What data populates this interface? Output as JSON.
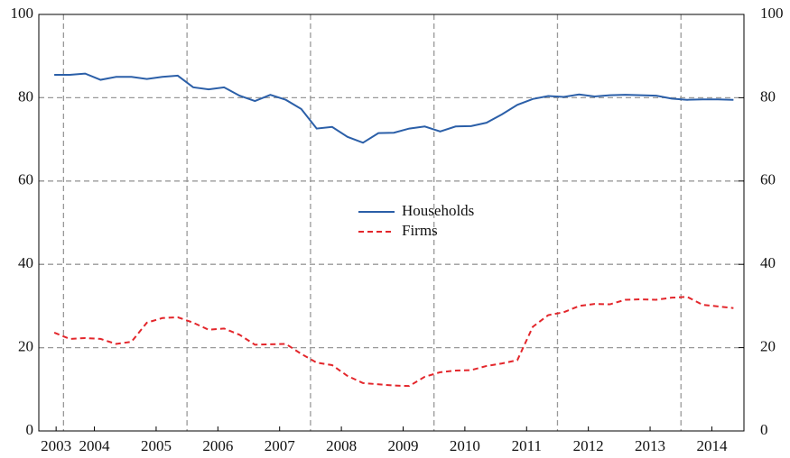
{
  "chart_data": {
    "type": "line",
    "x": [
      2003.85,
      2004.1,
      2004.35,
      2004.6,
      2004.85,
      2005.1,
      2005.35,
      2005.6,
      2005.85,
      2006.1,
      2006.35,
      2006.6,
      2006.85,
      2007.1,
      2007.35,
      2007.6,
      2007.85,
      2008.1,
      2008.35,
      2008.6,
      2008.85,
      2009.1,
      2009.35,
      2009.6,
      2009.85,
      2010.1,
      2010.35,
      2010.6,
      2010.85,
      2011.1,
      2011.35,
      2011.6,
      2011.85,
      2012.1,
      2012.35,
      2012.6,
      2012.85,
      2013.1,
      2013.35,
      2013.6,
      2013.85,
      2014.1,
      2014.35,
      2014.6,
      2014.85
    ],
    "series": [
      {
        "name": "Households",
        "color": "#2b5fa8",
        "dashed": false,
        "values": [
          85.5,
          85.5,
          85.8,
          84.3,
          85,
          85,
          84.5,
          85,
          85.3,
          82.5,
          82,
          82.5,
          80.5,
          79.2,
          80.7,
          79.5,
          77.3,
          72.6,
          73,
          70.6,
          69.2,
          71.5,
          71.6,
          72.6,
          73.1,
          71.9,
          73.1,
          73.2,
          74,
          76,
          78.3,
          79.7,
          80.4,
          80.2,
          80.8,
          80.3,
          80.6,
          80.7,
          80.6,
          80.5,
          79.8,
          79.5,
          79.6,
          79.6,
          79.5
        ]
      },
      {
        "name": "Firms",
        "color": "#e3262b",
        "dashed": true,
        "values": [
          23.6,
          22.1,
          22.3,
          22.1,
          20.9,
          21.4,
          26,
          27.1,
          27.3,
          26,
          24.3,
          24.6,
          23.1,
          20.7,
          20.8,
          20.9,
          18.5,
          16.4,
          15.8,
          13.2,
          11.5,
          11.2,
          10.9,
          10.8,
          13,
          14.1,
          14.5,
          14.6,
          15.6,
          16.2,
          17,
          25,
          27.8,
          28.5,
          30,
          30.5,
          30.4,
          31.5,
          31.6,
          31.5,
          32,
          32.2,
          30.3,
          29.9,
          29.5
        ]
      }
    ],
    "xlim": [
      2003.6,
      2015.02
    ],
    "xticks": [
      {
        "value": 2003.88,
        "label": "2003"
      },
      {
        "value": 2004.5,
        "label": "2004"
      },
      {
        "value": 2005.5,
        "label": "2005"
      },
      {
        "value": 2006.5,
        "label": "2006"
      },
      {
        "value": 2007.5,
        "label": "2007"
      },
      {
        "value": 2008.5,
        "label": "2008"
      },
      {
        "value": 2009.5,
        "label": "2009"
      },
      {
        "value": 2010.5,
        "label": "2010"
      },
      {
        "value": 2011.5,
        "label": "2011"
      },
      {
        "value": 2012.5,
        "label": "2012"
      },
      {
        "value": 2013.5,
        "label": "2013"
      },
      {
        "value": 2014.5,
        "label": "2014"
      }
    ],
    "xgrid": [
      2004,
      2006,
      2008,
      2010,
      2012,
      2014
    ],
    "ylim": [
      0,
      100
    ],
    "yticks": [
      0,
      20,
      40,
      60,
      80,
      100
    ],
    "y2lim": [
      0,
      100
    ],
    "y2ticks": [
      0,
      20,
      40,
      60,
      80,
      100
    ],
    "grid": true,
    "legend": "center"
  }
}
